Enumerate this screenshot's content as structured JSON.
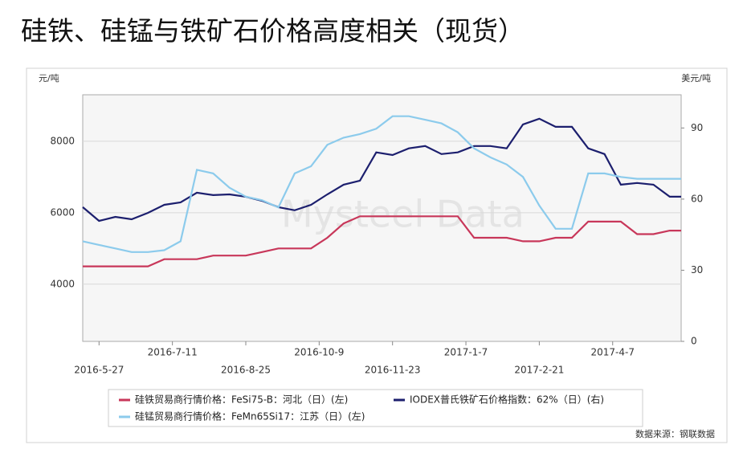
{
  "title": "硅铁、硅锰与铁矿石价格高度相关（现货）",
  "chart_data": {
    "type": "line",
    "y_label": "元/吨",
    "y2_label": "美元/吨",
    "watermark": "Mysteel Data",
    "source": "数据来源：钢联数据",
    "x": [
      "2016-5-17",
      "2016-5-27",
      "2016-6-6",
      "2016-6-16",
      "2016-6-26",
      "2016-7-6",
      "2016-7-16",
      "2016-7-26",
      "2016-8-5",
      "2016-8-15",
      "2016-8-25",
      "2016-9-4",
      "2016-9-14",
      "2016-9-24",
      "2016-10-4",
      "2016-10-14",
      "2016-10-24",
      "2016-11-3",
      "2016-11-13",
      "2016-11-23",
      "2016-12-3",
      "2016-12-13",
      "2016-12-23",
      "2017-1-2",
      "2017-1-12",
      "2017-1-22",
      "2017-2-1",
      "2017-2-11",
      "2017-2-21",
      "2017-3-3",
      "2017-3-13",
      "2017-3-23",
      "2017-4-2",
      "2017-4-12",
      "2017-4-22",
      "2017-5-2",
      "2017-5-12",
      "2017-5-19"
    ],
    "xlim": [
      "2016-5-17",
      "2017-5-19"
    ],
    "xticks": [
      "2016-5-27",
      "2016-7-11",
      "2016-8-25",
      "2016-10-9",
      "2016-11-23",
      "2017-1-7",
      "2017-2-21",
      "2017-4-7"
    ],
    "ylim": [
      2400,
      9300
    ],
    "yticks": [
      4000,
      6000,
      8000
    ],
    "y2lim": [
      0,
      104
    ],
    "y2ticks": [
      0,
      30,
      60,
      90
    ],
    "grid": true,
    "series": [
      {
        "name": "硅铁贸易商行情价格：FeSi75-B：河北（日）(左)",
        "color": "#c8375a",
        "values": [
          4500,
          4500,
          4500,
          4500,
          4500,
          4700,
          4700,
          4700,
          4800,
          4800,
          4800,
          4900,
          5000,
          5000,
          5000,
          5300,
          5700,
          5900,
          5900,
          5900,
          5900,
          5900,
          5900,
          5900,
          5300,
          5300,
          5300,
          5200,
          5200,
          5300,
          5300,
          5750,
          5750,
          5750,
          5400,
          5400,
          5500,
          5500
        ]
      },
      {
        "name": "IODEX普氏铁矿石价格指数：62%（日）(右)",
        "color": "#1c1f6e",
        "axis": "y2",
        "values": [
          56.6,
          50.8,
          52.5,
          51.5,
          54.2,
          57.6,
          58.6,
          62.7,
          61.7,
          62,
          61,
          59.3,
          56.6,
          55.3,
          57.6,
          62,
          66.1,
          67.8,
          79.7,
          78.6,
          81.4,
          82.4,
          79,
          79.7,
          82.4,
          82.4,
          81.4,
          91.5,
          93.9,
          90.5,
          90.5,
          81.4,
          79,
          66.1,
          66.8,
          66.1,
          61,
          61
        ]
      },
      {
        "name": "硅锰贸易商行情价格：FeMn65Si17：江苏（日）(左)",
        "color": "#8ccbec",
        "values": [
          5200,
          5100,
          5000,
          4900,
          4900,
          4950,
          5200,
          7200,
          7100,
          6700,
          6450,
          6350,
          6150,
          7100,
          7300,
          7900,
          8100,
          8200,
          8350,
          8700,
          8700,
          8600,
          8500,
          8250,
          7800,
          7550,
          7350,
          7000,
          6200,
          5550,
          5550,
          7100,
          7100,
          7000,
          6950,
          6950,
          6950,
          6950
        ]
      }
    ]
  }
}
